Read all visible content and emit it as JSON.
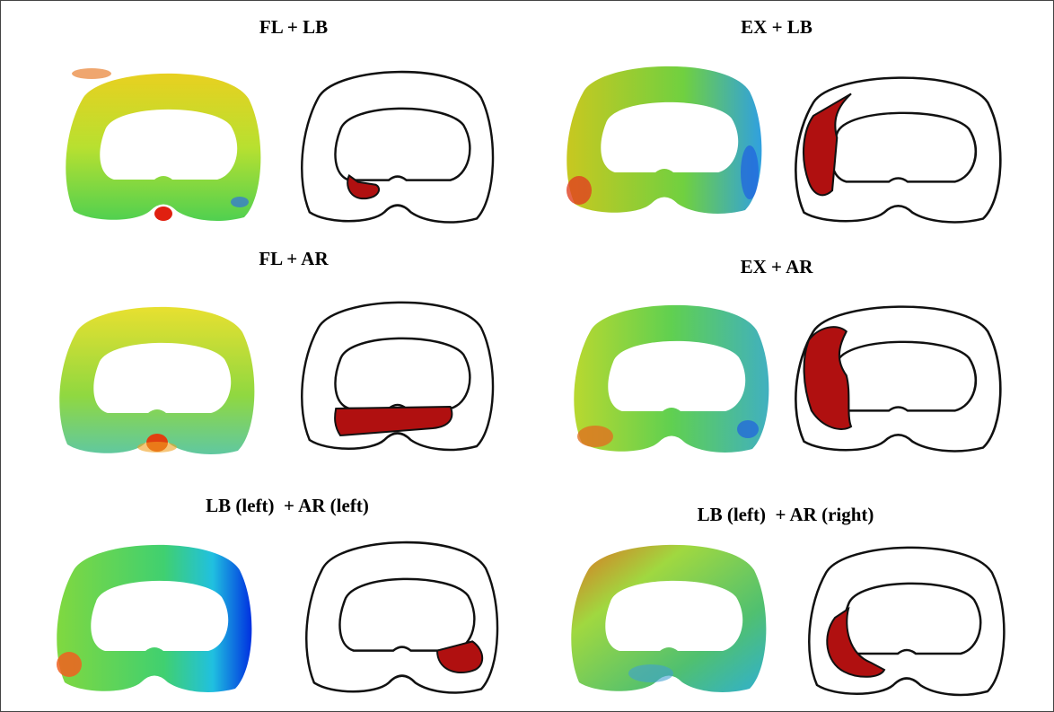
{
  "panels": [
    {
      "title": "FL + LB"
    },
    {
      "title": "EX + LB"
    },
    {
      "title": "FL + AR"
    },
    {
      "title": "EX + AR"
    },
    {
      "title": "LB (left)  + AR (left)"
    },
    {
      "title": "LB (left)  + AR (right)"
    }
  ]
}
